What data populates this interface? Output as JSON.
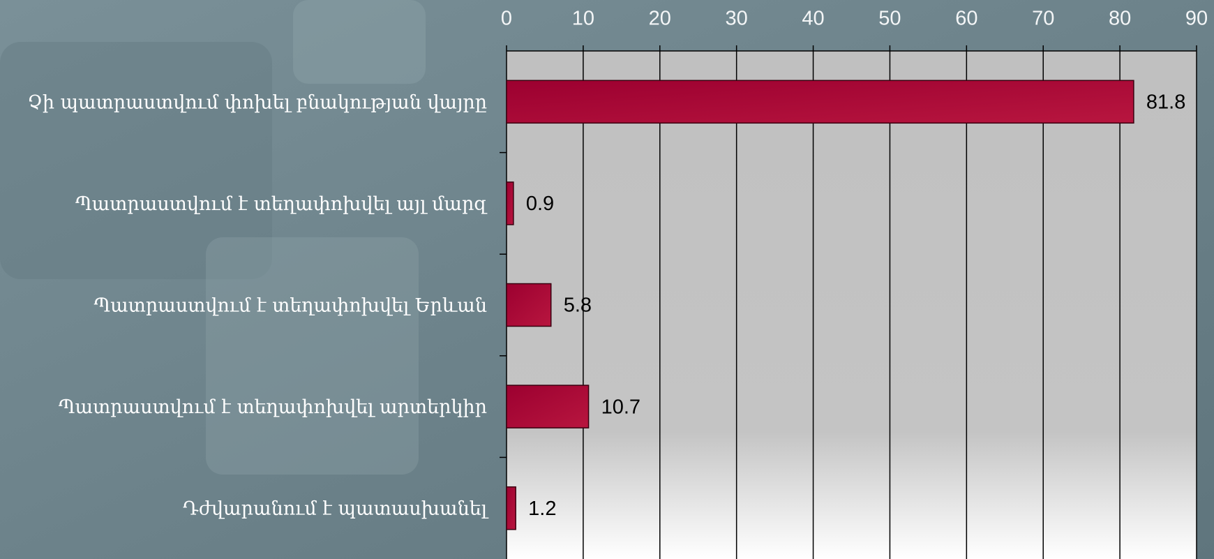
{
  "chart_data": {
    "type": "bar",
    "orientation": "horizontal",
    "categories": [
      "Չի պատրաստվում փոխել բնակության վայրը",
      "Պատրաստվում է տեղափոխվել այլ մարզ",
      "Պատրաստվում է տեղափոխվել Երևան",
      "Պատրաստվում է տեղափոխվել արտերկիր",
      "Դժվարանում է պատասխանել"
    ],
    "values": [
      81.8,
      0.9,
      5.8,
      10.7,
      1.2
    ],
    "color": "#a50034",
    "xlim": [
      0,
      90
    ],
    "xticks": [
      0,
      10,
      20,
      30,
      40,
      50,
      60,
      70,
      80,
      90
    ],
    "grid": true
  }
}
